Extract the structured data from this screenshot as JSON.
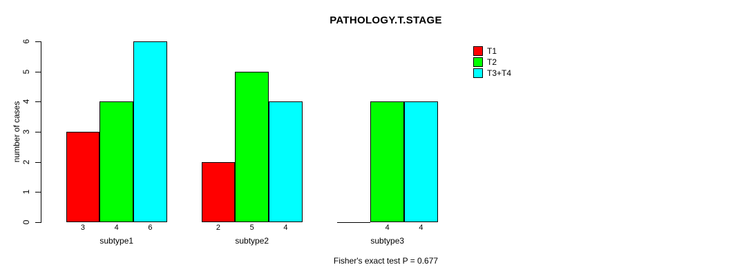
{
  "chart_data": {
    "type": "bar",
    "grouped": true,
    "title": "PATHOLOGY.T.STAGE",
    "ylabel": "number of cases",
    "xlabel": "",
    "categories": [
      "subtype1",
      "subtype2",
      "subtype3"
    ],
    "series": [
      {
        "name": "T1",
        "color": "#ff0000",
        "values": [
          3,
          2,
          0
        ]
      },
      {
        "name": "T2",
        "color": "#00ff00",
        "values": [
          4,
          5,
          4
        ]
      },
      {
        "name": "T3+T4",
        "color": "#00ffff",
        "values": [
          6,
          4,
          4
        ]
      }
    ],
    "bar_value_labels": [
      [
        "3",
        "4",
        "6"
      ],
      [
        "2",
        "5",
        "4"
      ],
      [
        "",
        "4",
        "4"
      ]
    ],
    "ylim": [
      0,
      6
    ],
    "yticks": [
      "0",
      "1",
      "2",
      "3",
      "4",
      "5",
      "6"
    ],
    "grid": false,
    "legend_position": "top-right",
    "annotation": "Fisher's exact test P = 0.677"
  }
}
